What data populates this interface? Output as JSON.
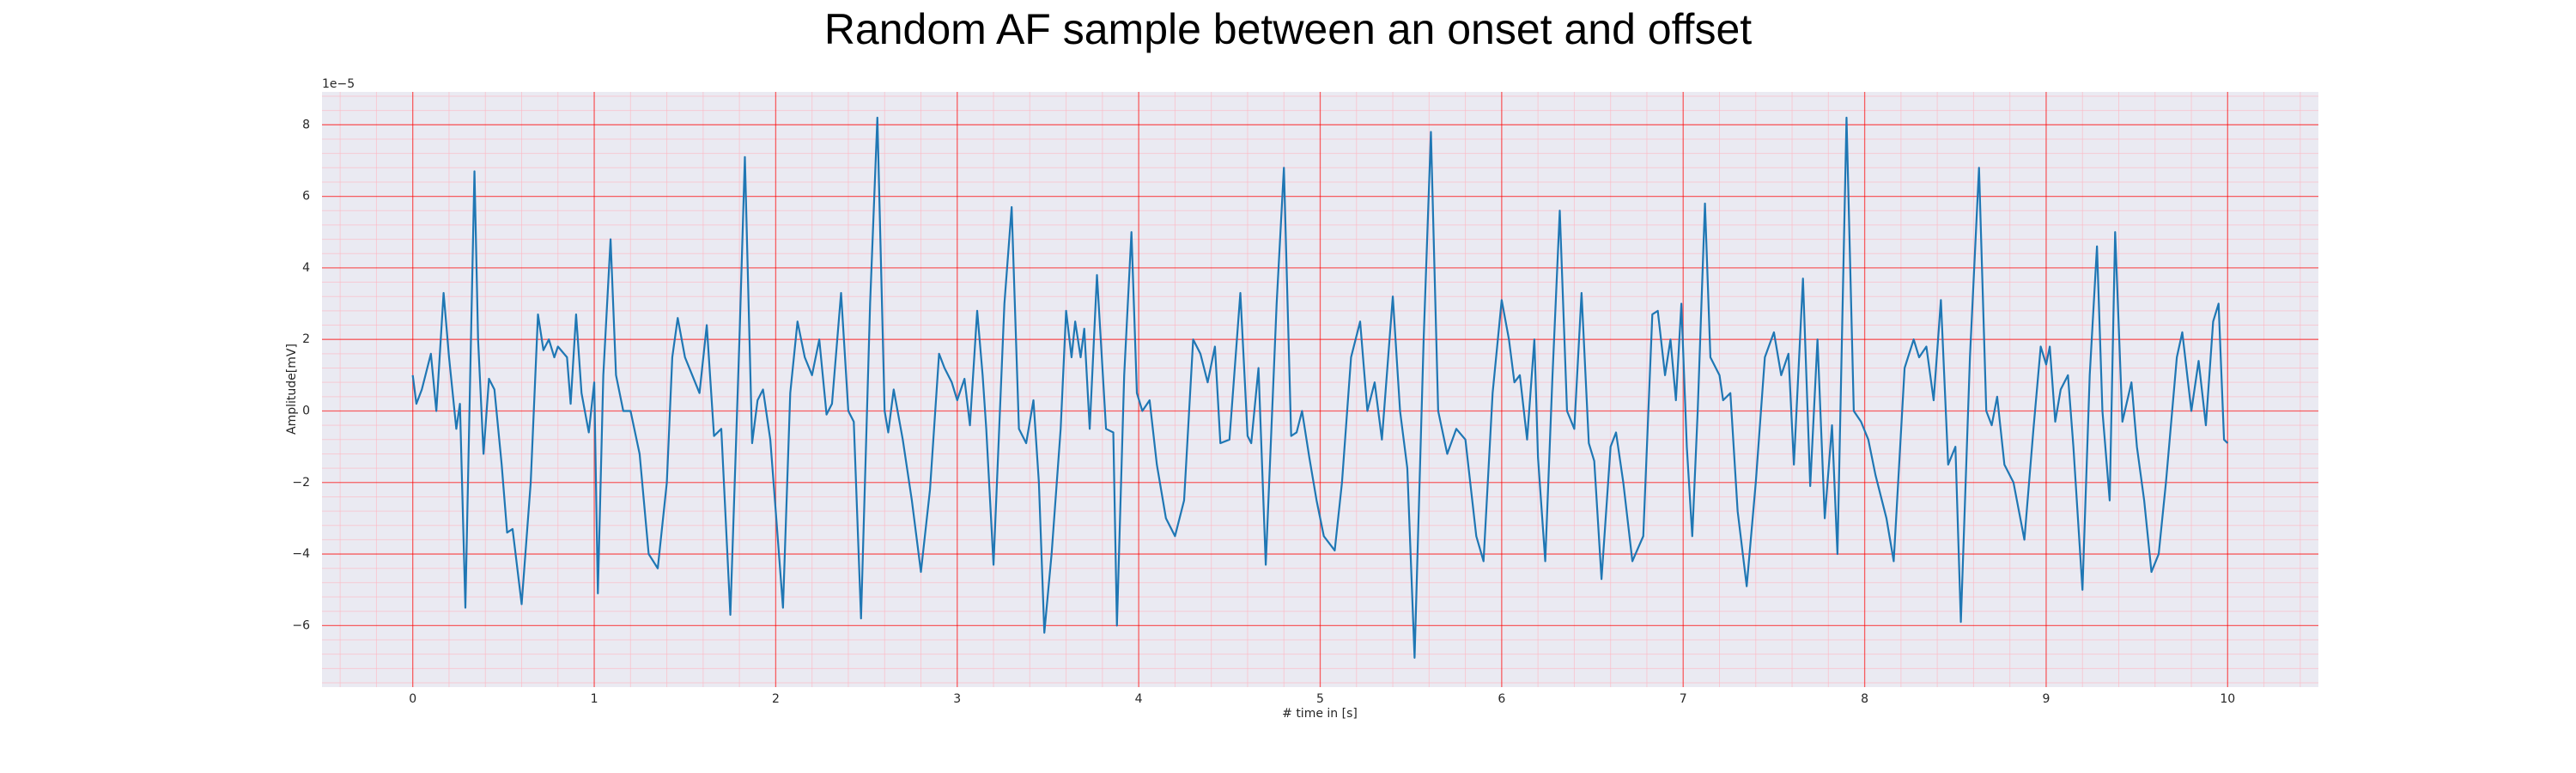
{
  "chart_data": {
    "type": "line",
    "title": "Random AF sample between an onset and offset",
    "xlabel": "# time in [s]",
    "ylabel": "Amplitude[mV]",
    "y_offset_label": "1e−5",
    "color": "#1f77b4",
    "background": "#eaeaf2",
    "grid": true,
    "grid_color": "#ff0000",
    "minor_grid": true,
    "minor_grid_color": "#ffb6c1",
    "xlim": [
      -0.5,
      10.5
    ],
    "ylim": [
      -7.72,
      8.92
    ],
    "xticks": [
      0,
      1,
      2,
      3,
      4,
      5,
      6,
      7,
      8,
      9,
      10
    ],
    "yticks": [
      {
        "value": -6,
        "label": "−6"
      },
      {
        "value": -4,
        "label": "−4"
      },
      {
        "value": -2,
        "label": "−2"
      },
      0,
      2,
      4,
      6,
      8
    ],
    "x": [
      0,
      0.02,
      0.05,
      0.1,
      0.13,
      0.17,
      0.2,
      0.24,
      0.26,
      0.29,
      0.34,
      0.36,
      0.39,
      0.42,
      0.45,
      0.49,
      0.52,
      0.55,
      0.6,
      0.65,
      0.69,
      0.72,
      0.75,
      0.78,
      0.8,
      0.85,
      0.87,
      0.9,
      0.93,
      0.97,
      1.0,
      1.02,
      1.05,
      1.09,
      1.12,
      1.16,
      1.2,
      1.25,
      1.3,
      1.35,
      1.4,
      1.43,
      1.46,
      1.5,
      1.54,
      1.58,
      1.62,
      1.66,
      1.7,
      1.75,
      1.8,
      1.83,
      1.87,
      1.9,
      1.93,
      1.97,
      2.0,
      2.04,
      2.08,
      2.12,
      2.16,
      2.2,
      2.24,
      2.28,
      2.31,
      2.36,
      2.4,
      2.43,
      2.47,
      2.52,
      2.56,
      2.6,
      2.62,
      2.65,
      2.7,
      2.75,
      2.8,
      2.85,
      2.9,
      2.93,
      2.97,
      3.0,
      3.04,
      3.07,
      3.11,
      3.14,
      3.16,
      3.2,
      3.26,
      3.3,
      3.34,
      3.38,
      3.42,
      3.45,
      3.48,
      3.52,
      3.57,
      3.6,
      3.63,
      3.65,
      3.68,
      3.7,
      3.73,
      3.77,
      3.82,
      3.86,
      3.88,
      3.92,
      3.96,
      3.99,
      4.02,
      4.06,
      4.1,
      4.15,
      4.2,
      4.25,
      4.3,
      4.34,
      4.38,
      4.42,
      4.45,
      4.5,
      4.56,
      4.6,
      4.62,
      4.66,
      4.7,
      4.76,
      4.8,
      4.84,
      4.87,
      4.9,
      4.94,
      4.98,
      5.02,
      5.08,
      5.12,
      5.17,
      5.22,
      5.26,
      5.3,
      5.34,
      5.4,
      5.44,
      5.48,
      5.52,
      5.57,
      5.61,
      5.65,
      5.7,
      5.75,
      5.8,
      5.86,
      5.9,
      5.95,
      6.0,
      6.04,
      6.07,
      6.1,
      6.14,
      6.18,
      6.2,
      6.24,
      6.28,
      6.32,
      6.36,
      6.4,
      6.44,
      6.48,
      6.51,
      6.55,
      6.6,
      6.63,
      6.67,
      6.72,
      6.78,
      6.83,
      6.86,
      6.9,
      6.93,
      6.96,
      6.99,
      7.02,
      7.05,
      7.08,
      7.12,
      7.15,
      7.2,
      7.22,
      7.26,
      7.3,
      7.35,
      7.4,
      7.45,
      7.5,
      7.54,
      7.58,
      7.61,
      7.66,
      7.7,
      7.74,
      7.78,
      7.82,
      7.85,
      7.9,
      7.94,
      7.98,
      8.02,
      8.06,
      8.12,
      8.16,
      8.22,
      8.27,
      8.3,
      8.34,
      8.38,
      8.42,
      8.46,
      8.5,
      8.53,
      8.58,
      8.63,
      8.67,
      8.7,
      8.73,
      8.77,
      8.82,
      8.88,
      8.93,
      8.97,
      9.0,
      9.02,
      9.05,
      9.08,
      9.12,
      9.15,
      9.2,
      9.24,
      9.28,
      9.31,
      9.35,
      9.38,
      9.42,
      9.47,
      9.5,
      9.54,
      9.58,
      9.62,
      9.66,
      9.72,
      9.75,
      9.8,
      9.84,
      9.88,
      9.92,
      9.95,
      9.98,
      10.0
    ],
    "values": [
      1.0,
      0.2,
      0.6,
      1.6,
      0.0,
      3.3,
      1.5,
      -0.5,
      0.2,
      -5.5,
      6.7,
      2.0,
      -1.2,
      0.9,
      0.6,
      -1.5,
      -3.4,
      -3.3,
      -5.4,
      -2.0,
      2.7,
      1.7,
      2.0,
      1.5,
      1.8,
      1.5,
      0.2,
      2.7,
      0.5,
      -0.6,
      0.8,
      -5.1,
      1.0,
      4.8,
      1.0,
      0.0,
      0.0,
      -1.2,
      -4.0,
      -4.4,
      -2.0,
      1.5,
      2.6,
      1.5,
      1.0,
      0.5,
      2.4,
      -0.7,
      -0.5,
      -5.7,
      2.0,
      7.1,
      -0.9,
      0.3,
      0.6,
      -0.8,
      -2.8,
      -5.5,
      0.5,
      2.5,
      1.5,
      1.0,
      2.0,
      -0.1,
      0.2,
      3.3,
      0.0,
      -0.3,
      -5.8,
      3.0,
      8.2,
      0.0,
      -0.6,
      0.6,
      -0.8,
      -2.5,
      -4.5,
      -2.2,
      1.6,
      1.2,
      0.8,
      0.3,
      0.9,
      -0.4,
      2.8,
      1.0,
      -0.5,
      -4.3,
      3.0,
      5.7,
      -0.5,
      -0.9,
      0.3,
      -2.0,
      -6.2,
      -4.0,
      -0.5,
      2.8,
      1.5,
      2.5,
      1.5,
      2.3,
      -0.5,
      3.8,
      -0.5,
      -0.6,
      -6.0,
      1.0,
      5.0,
      0.5,
      0.0,
      0.3,
      -1.5,
      -3.0,
      -3.5,
      -2.5,
      2.0,
      1.6,
      0.8,
      1.8,
      -0.9,
      -0.8,
      3.3,
      -0.7,
      -0.9,
      1.2,
      -4.3,
      3.0,
      6.8,
      -0.7,
      -0.6,
      0.0,
      -1.3,
      -2.5,
      -3.5,
      -3.9,
      -2.0,
      1.5,
      2.5,
      0.0,
      0.8,
      -0.8,
      3.2,
      0.0,
      -1.6,
      -6.9,
      2.0,
      7.8,
      0.0,
      -1.2,
      -0.5,
      -0.8,
      -3.5,
      -4.2,
      0.5,
      3.1,
      2.0,
      0.8,
      1.0,
      -0.8,
      2.0,
      -1.3,
      -4.2,
      1.0,
      5.6,
      0.0,
      -0.5,
      3.3,
      -0.9,
      -1.4,
      -4.7,
      -1.0,
      -0.6,
      -2.0,
      -4.2,
      -3.5,
      2.7,
      2.8,
      1.0,
      2.0,
      0.3,
      3.0,
      -1.0,
      -3.5,
      0.0,
      5.8,
      1.5,
      1.0,
      0.3,
      0.5,
      -2.8,
      -4.9,
      -2.0,
      1.5,
      2.2,
      1.0,
      1.6,
      -1.5,
      3.7,
      -2.1,
      2.0,
      -3.0,
      -0.4,
      -4.0,
      8.2,
      0.0,
      -0.3,
      -0.8,
      -1.8,
      -3.0,
      -4.2,
      1.2,
      2.0,
      1.5,
      1.8,
      0.3,
      3.1,
      -1.5,
      -1.0,
      -5.9,
      1.5,
      6.8,
      0.0,
      -0.4,
      0.4,
      -1.5,
      -2.0,
      -3.6,
      -0.5,
      1.8,
      1.3,
      1.8,
      -0.3,
      0.6,
      1.0,
      -1.0,
      -5.0,
      1.0,
      4.6,
      0.0,
      -2.5,
      5.0,
      -0.3,
      0.8,
      -1.0,
      -2.5,
      -4.5,
      -4.0,
      -2.0,
      1.5,
      2.2,
      0.0,
      1.4,
      -0.4,
      2.5,
      3.0,
      -0.8,
      -0.9
    ]
  }
}
